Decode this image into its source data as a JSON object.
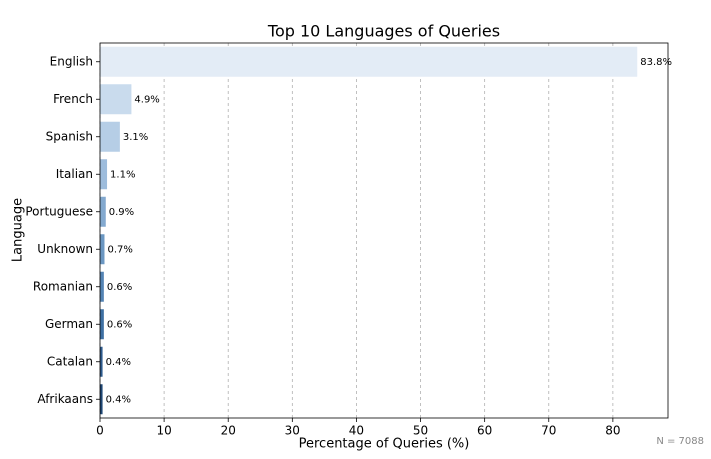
{
  "chart_data": {
    "type": "barh",
    "title": "Top 10 Languages of Queries",
    "xlabel": "Percentage of Queries (%)",
    "ylabel": "Language",
    "note": "N = 7088",
    "categories": [
      "English",
      "French",
      "Spanish",
      "Italian",
      "Portuguese",
      "Unknown",
      "Romanian",
      "German",
      "Catalan",
      "Afrikaans"
    ],
    "values": [
      83.8,
      4.9,
      3.1,
      1.1,
      0.9,
      0.7,
      0.6,
      0.6,
      0.4,
      0.4
    ],
    "value_labels": [
      "83.8%",
      "4.9%",
      "3.1%",
      "1.1%",
      "0.9%",
      "0.7%",
      "0.6%",
      "0.6%",
      "0.4%",
      "0.4%"
    ],
    "colors": [
      "#e3ecf6",
      "#c9dbed",
      "#b6cee6",
      "#9dbcdc",
      "#83a9cf",
      "#6b97c2",
      "#5484b4",
      "#3e70a3",
      "#2e5b8d",
      "#1f4774"
    ],
    "xlim": [
      0,
      88.6
    ],
    "xticks": [
      0,
      10,
      20,
      30,
      40,
      50,
      60,
      70,
      80
    ],
    "grid": true
  }
}
